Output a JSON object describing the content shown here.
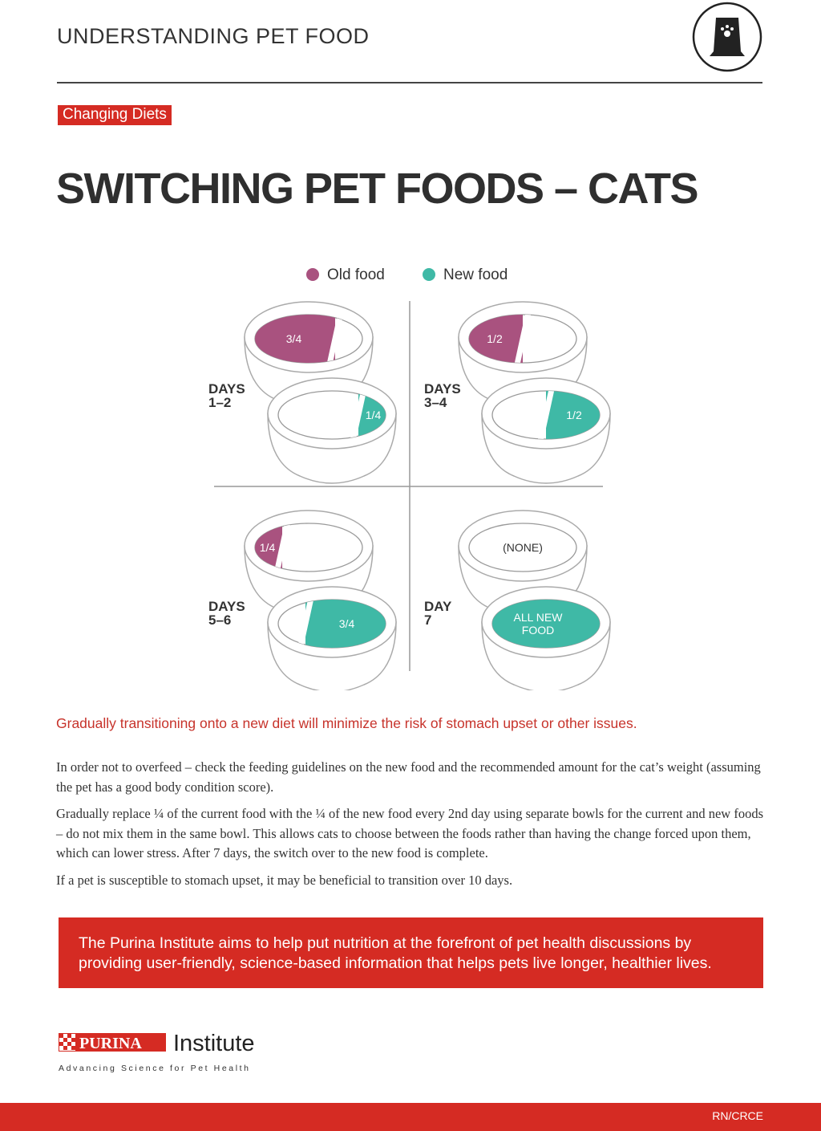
{
  "header": {
    "title": "UNDERSTANDING PET FOOD"
  },
  "tag": "Changing Diets",
  "title": "SWITCHING PET FOODS – CATS",
  "legend": [
    "Old food",
    "New food"
  ],
  "panels": [
    {
      "day": [
        "DAYS",
        "1–2"
      ],
      "old_label": [
        "3/4"
      ],
      "new_label": [
        "1/4"
      ]
    },
    {
      "day": [
        "DAYS",
        "3–4"
      ],
      "old_label": [
        "1/2"
      ],
      "new_label": [
        "1/2"
      ]
    },
    {
      "day": [
        "DAYS",
        "5–6"
      ],
      "old_label": [
        "1/4"
      ],
      "new_label": [
        "3/4"
      ]
    },
    {
      "day": [
        "DAY",
        "7"
      ],
      "old_label": [
        "(NONE)"
      ],
      "new_label": [
        "ALL NEW",
        "FOOD"
      ]
    }
  ],
  "highlight": "Gradually transitioning onto a new diet will minimize the risk of stomach upset or other issues.",
  "paragraphs": [
    "In order not to overfeed – check the feeding guidelines on the new food and the recommended amount for the cat’s weight (assuming the pet has a good body condition score).",
    "Gradually replace ¼ of the current food with the ¼ of the new food every 2nd day using separate bowls for the current and new foods – do not mix them in the same bowl. This allows cats to choose between the foods rather than having the change forced upon them, which can lower stress. After 7 days, the switch over to the new food is complete.",
    "If a pet is susceptible to stomach upset, it may be beneficial to transition over 10 days."
  ],
  "callout": "The Purina Institute aims to help put nutrition at the forefront of pet health discussions by providing user-friendly, science-based information that helps pets live longer, healthier lives.",
  "logo": {
    "brand": "PURINA",
    "name": "Institute",
    "tagline": "Advancing Science for Pet Health"
  },
  "footer": "RN/CRCE"
}
